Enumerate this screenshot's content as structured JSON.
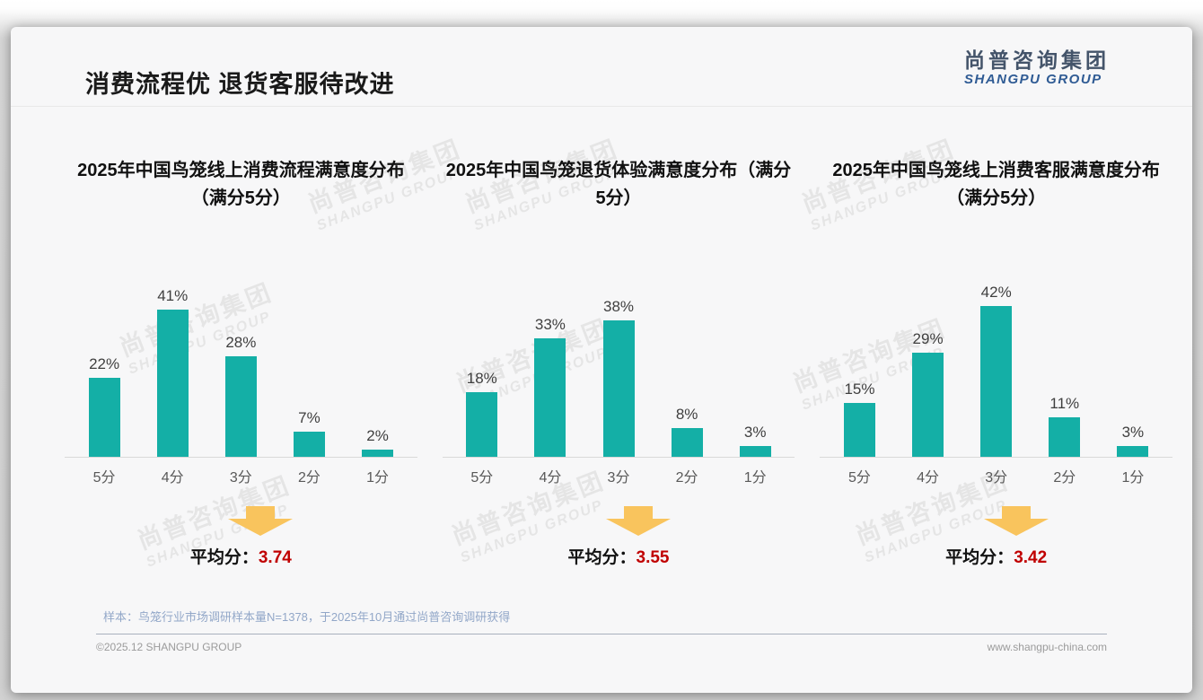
{
  "slide": {
    "title": "消费流程优 退货客服待改进",
    "logo": {
      "cn": "尚普咨询集团",
      "en": "SHANGPU GROUP"
    },
    "watermark": {
      "cn": "尚普咨询集团",
      "en": "SHANGPU GROUP"
    },
    "footnote": "样本：鸟笼行业市场调研样本量N=1378，于2025年10月通过尚普咨询调研获得",
    "copyright": "©2025.12 SHANGPU GROUP",
    "website": "www.shangpu-china.com"
  },
  "colors": {
    "bar_teal": "#14AFA6",
    "average_red": "#C00000",
    "arrow_orange": "#F9C45D",
    "logo_blue": "#2F5B94",
    "logo_dark": "#44546A",
    "footnote_blue": "#92A7C8"
  },
  "chart_data": [
    {
      "type": "bar",
      "title": "2025年中国鸟笼线上消费流程满意度分布（满分5分）",
      "categories": [
        "5分",
        "4分",
        "3分",
        "2分",
        "1分"
      ],
      "values": [
        22,
        41,
        28,
        7,
        2
      ],
      "unit": "%",
      "ylim": [
        0,
        45
      ],
      "grid": false,
      "legend": "none",
      "average_label": "平均分：",
      "average": "3.74"
    },
    {
      "type": "bar",
      "title": "2025年中国鸟笼退货体验满意度分布（满分5分）",
      "categories": [
        "5分",
        "4分",
        "3分",
        "2分",
        "1分"
      ],
      "values": [
        18,
        33,
        38,
        8,
        3
      ],
      "unit": "%",
      "ylim": [
        0,
        45
      ],
      "grid": false,
      "legend": "none",
      "average_label": "平均分：",
      "average": "3.55"
    },
    {
      "type": "bar",
      "title": "2025年中国鸟笼线上消费客服满意度分布（满分5分）",
      "categories": [
        "5分",
        "4分",
        "3分",
        "2分",
        "1分"
      ],
      "values": [
        15,
        29,
        42,
        11,
        3
      ],
      "unit": "%",
      "ylim": [
        0,
        45
      ],
      "grid": false,
      "legend": "none",
      "average_label": "平均分：",
      "average": "3.42"
    }
  ]
}
